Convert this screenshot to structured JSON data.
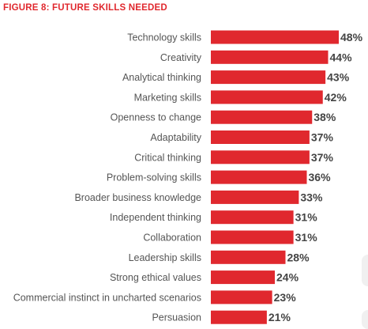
{
  "title": "FIGURE 8: FUTURE SKILLS NEEDED",
  "colors": {
    "bar": "#e0282e",
    "title": "#e0282e",
    "label": "#555555",
    "value": "#444444"
  },
  "chart_data": {
    "type": "bar",
    "orientation": "horizontal",
    "title": "FIGURE 8: FUTURE SKILLS NEEDED",
    "xlabel": "",
    "ylabel": "",
    "xlim": [
      0,
      48
    ],
    "grid": false,
    "categories": [
      "Technology skills",
      "Creativity",
      "Analytical thinking",
      "Marketing skills",
      "Openness to change",
      "Adaptability",
      "Critical thinking",
      "Problem-solving skills",
      "Broader business knowledge",
      "Independent thinking",
      "Collaboration",
      "Leadership skills",
      "Strong ethical values",
      "Commercial instinct in uncharted scenarios",
      "Persuasion"
    ],
    "values": [
      48,
      44,
      43,
      42,
      38,
      37,
      37,
      36,
      33,
      31,
      31,
      28,
      24,
      23,
      21
    ],
    "value_labels": [
      "48%",
      "44%",
      "43%",
      "42%",
      "38%",
      "37%",
      "37%",
      "36%",
      "33%",
      "31%",
      "31%",
      "28%",
      "24%",
      "23%",
      "21%"
    ]
  }
}
